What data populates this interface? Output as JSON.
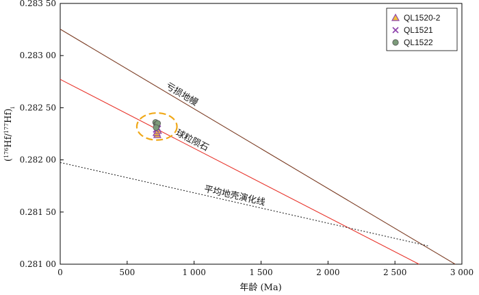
{
  "chart_data": {
    "type": "scatter",
    "xlabel": "年龄 (Ma)",
    "ylabel": "(176Hf/177Hf)i",
    "xlim": [
      0,
      3000
    ],
    "ylim": [
      0.281,
      0.2835
    ],
    "x_ticks": [
      0,
      500,
      1000,
      1500,
      2000,
      2500,
      3000
    ],
    "x_tick_labels": [
      "0",
      "500",
      "1 000",
      "1 500",
      "2 000",
      "2 500",
      "3 000"
    ],
    "y_ticks": [
      0.281,
      0.2815,
      0.282,
      0.2825,
      0.283,
      0.2835
    ],
    "y_tick_labels": [
      "0.281 00",
      "0.281 50",
      "0.282 00",
      "0.282 50",
      "0.283 00",
      "0.283 50"
    ],
    "legend_position": "top-right",
    "grid": false,
    "reference_lines": [
      {
        "name": "亏损地幔",
        "color": "#7a3b22",
        "style": "solid",
        "points": [
          [
            0,
            0.283253
          ],
          [
            2950,
            0.281
          ]
        ]
      },
      {
        "name": "球粒陨石",
        "color": "#e8332a",
        "style": "solid",
        "points": [
          [
            0,
            0.282772
          ],
          [
            2680,
            0.281
          ]
        ]
      },
      {
        "name": "平均地壳演化线",
        "color": "#222222",
        "style": "dotted",
        "points": [
          [
            0,
            0.281975
          ],
          [
            2750,
            0.281175
          ]
        ]
      }
    ],
    "series": [
      {
        "name": "QL1520-2",
        "marker": "triangle",
        "color": "#f3c23a",
        "edge": "#8e44ad",
        "points": [
          [
            725,
            0.28224
          ],
          [
            720,
            0.28226
          ],
          [
            730,
            0.28228
          ]
        ]
      },
      {
        "name": "QL1521",
        "marker": "x",
        "color": "#8e44ad",
        "points": [
          [
            715,
            0.28229
          ],
          [
            725,
            0.28231
          ],
          [
            720,
            0.28232
          ],
          [
            730,
            0.2823
          ]
        ]
      },
      {
        "name": "QL1522",
        "marker": "circle",
        "color": "#7c9b7a",
        "edge": "#555555",
        "points": [
          [
            712,
            0.28236
          ],
          [
            718,
            0.28234
          ],
          [
            722,
            0.28233
          ],
          [
            728,
            0.28235
          ],
          [
            716,
            0.28231
          ]
        ]
      }
    ],
    "highlight_ellipse": {
      "cx": 722,
      "cy": 0.28232,
      "rx": 150,
      "ry": 0.00013,
      "color": "#f0a818",
      "style": "dashed"
    }
  }
}
